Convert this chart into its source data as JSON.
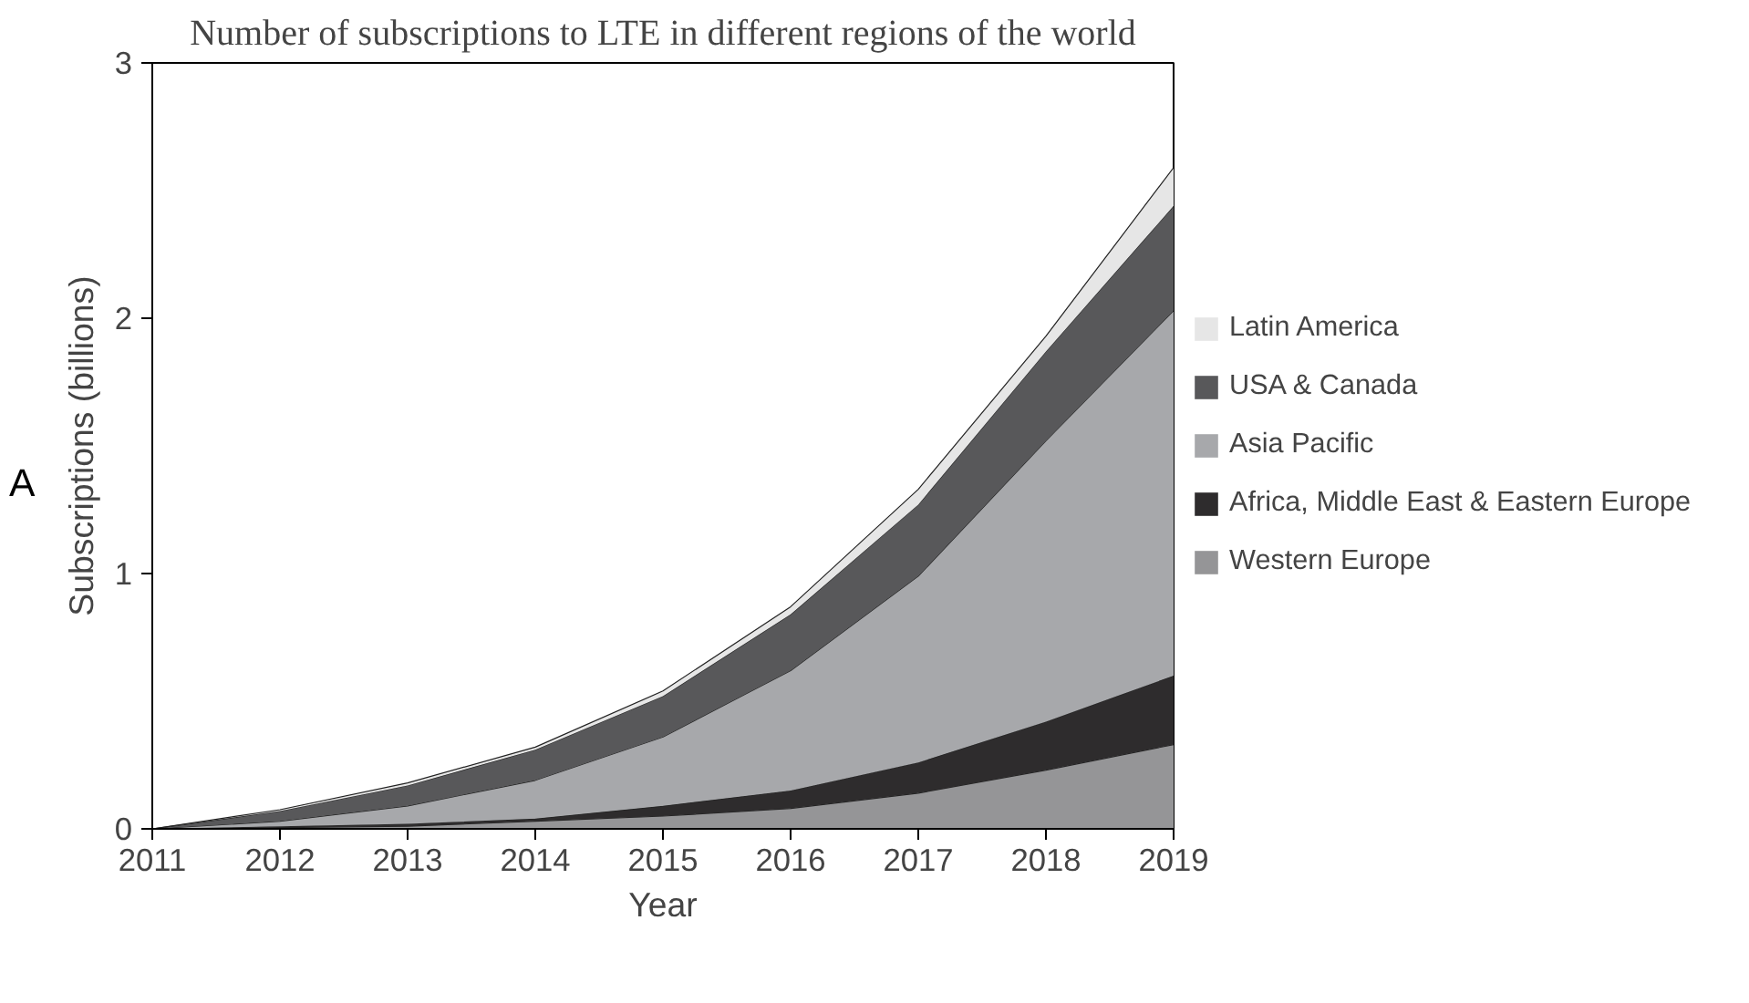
{
  "chart_data": {
    "type": "area",
    "stacked": true,
    "title": "Number of subscriptions to LTE in different regions of the world",
    "xlabel": "Year",
    "ylabel": "Subscriptions (billions)",
    "annotations": [
      "A"
    ],
    "x": [
      2011,
      2012,
      2013,
      2014,
      2015,
      2016,
      2017,
      2018,
      2019
    ],
    "xlim": [
      2011,
      2019
    ],
    "xticks": [
      2011,
      2012,
      2013,
      2014,
      2015,
      2016,
      2017,
      2018,
      2019
    ],
    "ylim": [
      0,
      3
    ],
    "yticks": [
      0,
      1,
      2,
      3
    ],
    "grid": false,
    "legend": "right",
    "series": [
      {
        "name": "Western Europe",
        "color": "#959597",
        "values": [
          0,
          0.005,
          0.01,
          0.03,
          0.05,
          0.08,
          0.14,
          0.23,
          0.33
        ]
      },
      {
        "name": "Africa, Middle East & Eastern Europe",
        "color": "#2e2c2d",
        "values": [
          0,
          0.005,
          0.01,
          0.01,
          0.04,
          0.07,
          0.12,
          0.19,
          0.27
        ]
      },
      {
        "name": "Asia Pacific",
        "color": "#a7a8ab",
        "values": [
          0,
          0.02,
          0.07,
          0.15,
          0.27,
          0.47,
          0.73,
          1.1,
          1.43
        ]
      },
      {
        "name": "USA & Canada",
        "color": "#58585a",
        "values": [
          0,
          0.04,
          0.08,
          0.12,
          0.16,
          0.22,
          0.28,
          0.35,
          0.41
        ]
      },
      {
        "name": "Latin America",
        "color": "#e6e6e6",
        "values": [
          0,
          0.005,
          0.01,
          0.01,
          0.02,
          0.03,
          0.06,
          0.06,
          0.15
        ]
      }
    ]
  }
}
